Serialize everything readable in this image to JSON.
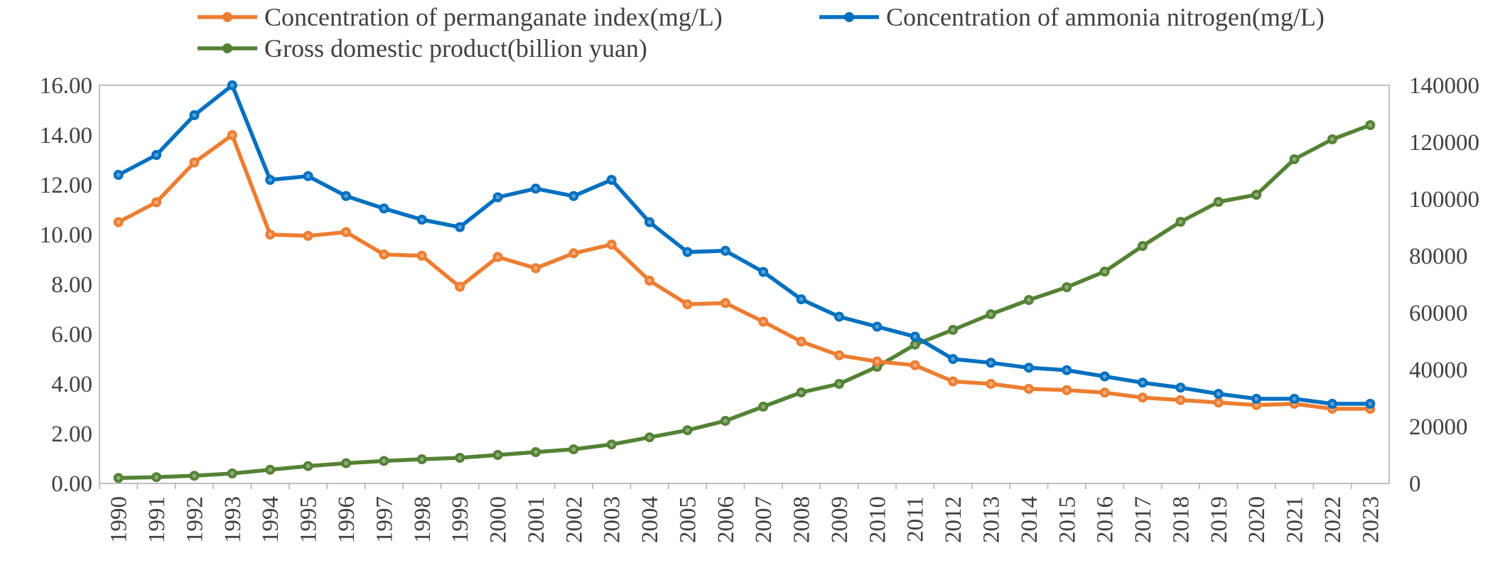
{
  "chart_data": {
    "type": "line",
    "title": "",
    "xlabel": "",
    "ylabel": "",
    "y2label": "",
    "categories": [
      "1990",
      "1991",
      "1992",
      "1993",
      "1994",
      "1995",
      "1996",
      "1997",
      "1998",
      "1999",
      "2000",
      "2001",
      "2002",
      "2003",
      "2004",
      "2005",
      "2006",
      "2007",
      "2008",
      "2009",
      "2010",
      "2011",
      "2012",
      "2013",
      "2014",
      "2015",
      "2016",
      "2017",
      "2018",
      "2019",
      "2020",
      "2021",
      "2022",
      "2023"
    ],
    "ylim": [
      0,
      16
    ],
    "y_ticks": [
      "0.00",
      "2.00",
      "4.00",
      "6.00",
      "8.00",
      "10.00",
      "12.00",
      "14.00",
      "16.00"
    ],
    "y2lim": [
      0,
      140000
    ],
    "y2_ticks": [
      "0",
      "20000",
      "40000",
      "60000",
      "80000",
      "100000",
      "120000",
      "140000"
    ],
    "legend_position": "top",
    "grid": false,
    "series": [
      {
        "name": "Concentration of permanganate index(mg/L)",
        "axis": "left",
        "color": "#ED7D31",
        "values": [
          10.5,
          11.3,
          12.9,
          14.0,
          10.0,
          9.95,
          10.1,
          9.2,
          9.15,
          7.9,
          9.1,
          8.65,
          9.25,
          9.6,
          8.15,
          7.2,
          7.25,
          6.5,
          5.7,
          5.15,
          4.9,
          4.75,
          4.1,
          4.0,
          3.8,
          3.75,
          3.65,
          3.45,
          3.35,
          3.25,
          3.15,
          3.2,
          3.0,
          3.0
        ]
      },
      {
        "name": "Concentration of ammonia nitrogen(mg/L)",
        "axis": "left",
        "color": "#0070C0",
        "values": [
          12.4,
          13.2,
          14.8,
          16.0,
          12.2,
          12.35,
          11.55,
          11.05,
          10.6,
          10.3,
          11.5,
          11.85,
          11.55,
          12.2,
          10.5,
          9.3,
          9.35,
          8.5,
          7.4,
          6.7,
          6.3,
          5.9,
          5.0,
          4.85,
          4.65,
          4.55,
          4.3,
          4.05,
          3.85,
          3.6,
          3.4,
          3.4,
          3.2,
          3.2
        ]
      },
      {
        "name": "Gross domestic product(billion yuan)",
        "axis": "right",
        "color": "#548235",
        "values": [
          1900,
          2200,
          2700,
          3500,
          4800,
          6100,
          7100,
          7900,
          8500,
          9000,
          10000,
          11000,
          12000,
          13700,
          16200,
          18700,
          22000,
          27000,
          32000,
          35000,
          41000,
          48800,
          54000,
          59500,
          64500,
          69000,
          74500,
          83500,
          92000,
          99000,
          101500,
          114000,
          121000,
          126000
        ]
      }
    ]
  }
}
